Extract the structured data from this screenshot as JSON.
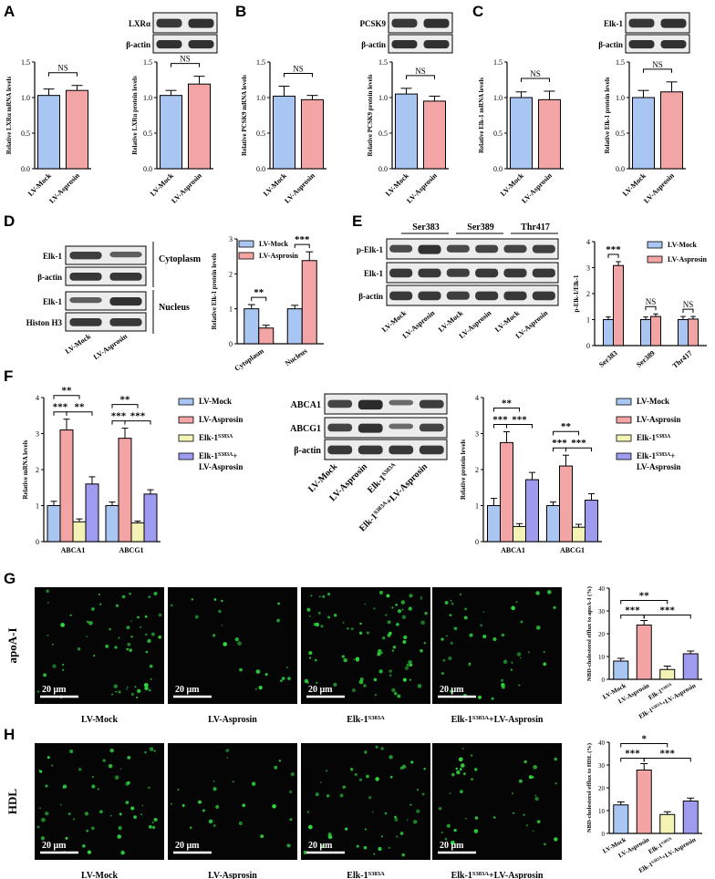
{
  "colors": {
    "mock": "#a9c6f2",
    "asprosin": "#f3a4a4",
    "mutant": "#f3f3b5",
    "combo": "#9f9cf0",
    "band": "#1a1a1a",
    "micro_dot": "#2fd63f"
  },
  "panel_labels": [
    "A",
    "B",
    "C",
    "D",
    "E",
    "F",
    "G",
    "H"
  ],
  "conditions": {
    "mock": "LV-Mock",
    "asprosin": "LV-Asprosin",
    "mutant": "Elk-1",
    "mutant_sup": "S383A",
    "combo_suffix": "+LV-Asprosin"
  },
  "common": {
    "beta_actin": "β-actin",
    "ns": "NS"
  },
  "blots": {
    "A": {
      "protein": "LXRα"
    },
    "B": {
      "protein": "PCSK9"
    },
    "C": {
      "protein": "Elk-1"
    },
    "D": {
      "rows": [
        "Elk-1",
        "β-actin",
        "Elk-1",
        "Histon H3"
      ],
      "fractions": [
        "Cytoplasm",
        "Nucleus"
      ]
    },
    "E": {
      "sites": [
        "Ser383",
        "Ser389",
        "Thr417"
      ],
      "rows": [
        "p-Elk-1",
        "Elk-1",
        "β-actin"
      ]
    },
    "F": {
      "rows": [
        "ABCA1",
        "ABCG1",
        "β-actin"
      ]
    }
  },
  "microscopy": {
    "row_labels": [
      "apoA-I",
      "HDL"
    ],
    "scale_bar": "20 μm"
  },
  "chart_data": [
    {
      "id": "A1",
      "type": "bar",
      "ylabel": "Relative LXRα mRNA levels",
      "ylim": [
        0,
        1.5
      ],
      "ticks": [
        0.0,
        0.5,
        1.0,
        1.5
      ],
      "categories": [
        "LV-Mock",
        "LV-Asprosin"
      ],
      "values": [
        1.03,
        1.1
      ],
      "errors": [
        0.09,
        0.07
      ],
      "annotations": [
        "NS"
      ]
    },
    {
      "id": "A2",
      "type": "bar",
      "ylabel": "Relative LXRα protein levels",
      "ylim": [
        0,
        1.5
      ],
      "ticks": [
        0.0,
        0.5,
        1.0,
        1.5
      ],
      "categories": [
        "LV-Mock",
        "LV-Asprosin"
      ],
      "values": [
        1.03,
        1.19
      ],
      "errors": [
        0.07,
        0.11
      ],
      "annotations": [
        "NS"
      ]
    },
    {
      "id": "B1",
      "type": "bar",
      "ylabel": "Relative PCSK9 mRNA levels",
      "ylim": [
        0,
        1.5
      ],
      "ticks": [
        0.0,
        0.5,
        1.0,
        1.5
      ],
      "categories": [
        "LV-Mock",
        "LV-Asprosin"
      ],
      "values": [
        1.02,
        0.97
      ],
      "errors": [
        0.14,
        0.06
      ],
      "annotations": [
        "NS"
      ]
    },
    {
      "id": "B2",
      "type": "bar",
      "ylabel": "Relative PCSK9 protein levels",
      "ylim": [
        0,
        1.5
      ],
      "ticks": [
        0.0,
        0.5,
        1.0,
        1.5
      ],
      "categories": [
        "LV-Mock",
        "LV-Asprosin"
      ],
      "values": [
        1.05,
        0.95
      ],
      "errors": [
        0.08,
        0.07
      ],
      "annotations": [
        "NS"
      ]
    },
    {
      "id": "C1",
      "type": "bar",
      "ylabel": "Relative Elk-1 mRNA levels",
      "ylim": [
        0,
        1.5
      ],
      "ticks": [
        0.0,
        0.5,
        1.0,
        1.5
      ],
      "categories": [
        "LV-Mock",
        "LV-Asprosin"
      ],
      "values": [
        1.0,
        0.97
      ],
      "errors": [
        0.08,
        0.12
      ],
      "annotations": [
        "NS"
      ]
    },
    {
      "id": "C2",
      "type": "bar",
      "ylabel": "Relative Elk-1 protein levels",
      "ylim": [
        0,
        1.5
      ],
      "ticks": [
        0.0,
        0.5,
        1.0,
        1.5
      ],
      "categories": [
        "LV-Mock",
        "LV-Asprosin"
      ],
      "values": [
        1.0,
        1.08
      ],
      "errors": [
        0.1,
        0.14
      ],
      "annotations": [
        "NS"
      ]
    },
    {
      "id": "D",
      "type": "bar",
      "ylabel": "Relative Elk-1 protein levels",
      "ylim": [
        0,
        3
      ],
      "ticks": [
        0,
        1,
        2,
        3
      ],
      "categories": [
        "Cytoplasm",
        "Nucleus"
      ],
      "series": [
        {
          "name": "LV-Mock",
          "values": [
            1.0,
            1.0
          ],
          "errors": [
            0.12,
            0.1
          ]
        },
        {
          "name": "LV-Asprosin",
          "values": [
            0.45,
            2.38
          ],
          "errors": [
            0.08,
            0.25
          ]
        }
      ],
      "annotations": [
        "**",
        "***"
      ],
      "legend": "top-left"
    },
    {
      "id": "E",
      "type": "bar",
      "ylabel": "p-Elk-1/Elk-1",
      "ylim": [
        0,
        4
      ],
      "ticks": [
        0,
        1,
        2,
        3,
        4
      ],
      "categories": [
        "Ser383",
        "Ser389",
        "Thr417"
      ],
      "series": [
        {
          "name": "LV-Mock",
          "values": [
            1.0,
            1.0,
            1.0
          ],
          "errors": [
            0.1,
            0.1,
            0.12
          ]
        },
        {
          "name": "LV-Asprosin",
          "values": [
            3.08,
            1.12,
            1.02
          ],
          "errors": [
            0.15,
            0.1,
            0.1
          ]
        }
      ],
      "annotations": [
        "***",
        "NS",
        "NS"
      ],
      "legend": "top-right"
    },
    {
      "id": "F1",
      "type": "bar",
      "ylabel": "Relative mRNA levels",
      "ylim": [
        0,
        4
      ],
      "ticks": [
        0,
        1,
        2,
        3,
        4
      ],
      "categories": [
        "ABCA1",
        "ABCG1"
      ],
      "series": [
        {
          "name": "LV-Mock",
          "values": [
            1.0,
            1.0
          ],
          "errors": [
            0.12,
            0.1
          ]
        },
        {
          "name": "LV-Asprosin",
          "values": [
            3.1,
            2.87
          ],
          "errors": [
            0.3,
            0.28
          ]
        },
        {
          "name": "Elk-1 S383A",
          "values": [
            0.55,
            0.52
          ],
          "errors": [
            0.08,
            0.05
          ]
        },
        {
          "name": "Elk-1 S383A + LV-Asprosin",
          "values": [
            1.6,
            1.32
          ],
          "errors": [
            0.2,
            0.12
          ]
        }
      ],
      "annotations": [
        "**",
        "***",
        "**",
        "**",
        "***",
        "***"
      ],
      "legend": "right"
    },
    {
      "id": "F2",
      "type": "bar",
      "ylabel": "Relative protein levels",
      "ylim": [
        0,
        4
      ],
      "ticks": [
        0,
        1,
        2,
        3,
        4
      ],
      "categories": [
        "ABCA1",
        "ABCG1"
      ],
      "series": [
        {
          "name": "LV-Mock",
          "values": [
            1.0,
            1.0
          ],
          "errors": [
            0.2,
            0.1
          ]
        },
        {
          "name": "LV-Asprosin",
          "values": [
            2.75,
            2.1
          ],
          "errors": [
            0.3,
            0.3
          ]
        },
        {
          "name": "Elk-1 S383A",
          "values": [
            0.42,
            0.4
          ],
          "errors": [
            0.08,
            0.08
          ]
        },
        {
          "name": "Elk-1 S383A + LV-Asprosin",
          "values": [
            1.72,
            1.15
          ],
          "errors": [
            0.2,
            0.18
          ]
        }
      ],
      "annotations": [
        "**",
        "***",
        "***",
        "**",
        "***",
        "***"
      ],
      "legend": "right"
    },
    {
      "id": "G",
      "type": "bar",
      "ylabel": "NBD-cholesterol efflux to apoA-I (%)",
      "ylim": [
        0,
        40
      ],
      "ticks": [
        0,
        10,
        20,
        30,
        40
      ],
      "categories": [
        "LV-Mock",
        "LV-Asprosin",
        "Elk-1 S383A",
        "Elk-1 S383A+LV-Asprosin"
      ],
      "values": [
        8,
        23.8,
        4.3,
        11.2
      ],
      "errors": [
        1.2,
        2.0,
        1.5,
        1.2
      ],
      "annotations": [
        "**",
        "***",
        "***"
      ]
    },
    {
      "id": "H",
      "type": "bar",
      "ylabel": "NBD-cholesterol efflux to HDL (%)",
      "ylim": [
        0,
        40
      ],
      "ticks": [
        0,
        10,
        20,
        30,
        40
      ],
      "categories": [
        "LV-Mock",
        "LV-Asprosin",
        "Elk-1 S383A",
        "Elk-1 S383A+LV-Asprosin"
      ],
      "values": [
        12.5,
        27.8,
        8.3,
        14.2
      ],
      "errors": [
        1.3,
        2.8,
        1.2,
        1.3
      ],
      "annotations": [
        "*",
        "***",
        "***"
      ]
    }
  ]
}
